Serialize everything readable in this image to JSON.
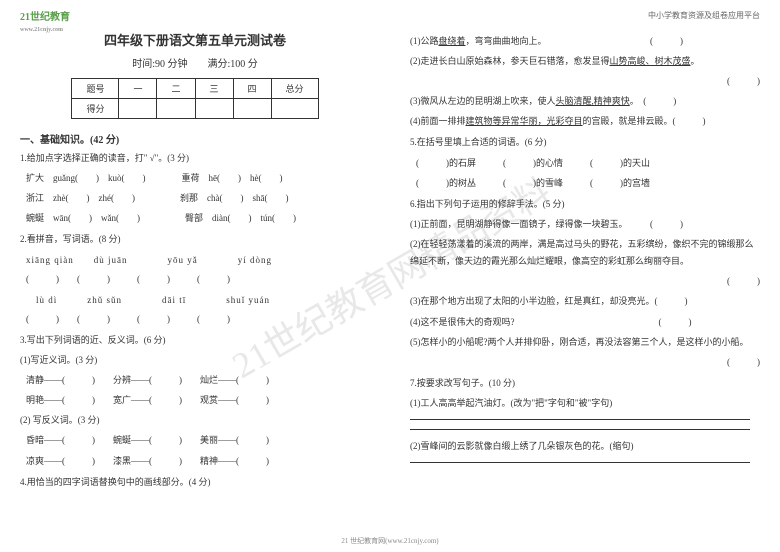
{
  "logo": {
    "main": "21世纪教育",
    "sub": "www.21cnjy.com"
  },
  "header_right": "中小学教育资源及组卷应用平台",
  "watermark": "21世纪教育网精品资料",
  "title": "四年级下册语文第五单元测试卷",
  "time_score": "时间:90 分钟　　满分:100 分",
  "score_table": {
    "row1": [
      "题号",
      "一",
      "二",
      "三",
      "四",
      "总分"
    ],
    "row2": [
      "得分",
      "",
      "",
      "",
      "",
      ""
    ]
  },
  "section1_title": "一、基础知识。(42 分)",
  "q1": {
    "title": "1.给加点字选择正确的读音，打\" √\"。(3 分)",
    "line1": "扩大　guǎng(　　)　kuò(　　)　　　　重荷　hē(　　)　hè(　　)",
    "line2": "浙江　zhè(　　)　zhé(　　)　　　　　刹那　chà(　　)　shā(　　)",
    "line3": "蜿蜒　wān(　　)　wǎn(　　)　　　　　臀部　diàn(　　)　tún(　　)"
  },
  "q2": {
    "title": "2.看拼音，写词语。(8 分)",
    "line1": "xiāng qiàn　　dù  juān　　　　yōu  yǎ　　　　yí  dòng",
    "line2": "(　　　)　　(　　　)　　　(　　　)　　　(　　　)",
    "line3": "　lù  dì　　　zhǔ  sǔn　　　　dāi  tī　　　　shuǐ  yuán",
    "line4": "(　　　)　　(　　　)　　　(　　　)　　　(　　　)"
  },
  "q3": {
    "title": "3.写出下列词语的近、反义词。(6 分)",
    "sub1": "(1)写近义词。(3 分)",
    "line1": "清静——(　　　)　　分辨——(　　　)　　灿烂——(　　　)",
    "line2": "明艳——(　　　)　　宽广——(　　　)　　观赏——(　　　)",
    "sub2": "(2) 写反义词。(3 分)",
    "line3": "昏暗——(　　　)　　蜿蜒——(　　　)　　美丽——(　　　)",
    "line4": "凉爽——(　　　)　　漆黑——(　　　)　　精神——(　　　)"
  },
  "q4": {
    "title": "4.用恰当的四字词语替换句中的画线部分。(4 分)",
    "r_line1": "(1)公路",
    "r_line1b": "，弯弯曲曲地向上。　　　　　　　　　　　　(　　　)",
    "r_underline1": "盘绕着",
    "r_line2": "(2)走进长白山原始森林，参天巨石错落，愈发显得",
    "r_underline2": "山势高峻、树木茂盛",
    "r_line2b": "。",
    "r_paren2": "(　　　)",
    "r_line3": "(3)微风从左边的昆明湖上吹来，使人",
    "r_underline3": "头脑清醒,精神爽快",
    "r_line3b": "。　(　　　)",
    "r_line4": "(4)前面一排排",
    "r_underline4": "建筑物等异常华丽，光彩夺目",
    "r_line4b": "的宫殿，就是排云殿。(　　　)"
  },
  "q5": {
    "title": "5.在括号里填上合适的词语。(6 分)",
    "line1": "(　　　)的石屏　　　(　　　)的心情　　　(　　　)的天山",
    "line2": "(　　　)的树丛　　　(　　　)的雪峰　　　(　　　)的宫墙"
  },
  "q6": {
    "title": "6.指出下列句子运用的修辞手法。(5 分)",
    "line1": "(1)正前面，昆明湖静得像一面镜子，绿得像一块碧玉。　　　(　　　)",
    "line2": "(2)在轻轻荡漾着的溪流的两岸，满是高过马头的野花，五彩缤纷，像织不完的锦缎那么绵延不断，像天边的霞光那么灿烂耀眼，像高空的彩虹那么绚丽夺目。",
    "paren2": "(　　　)",
    "line3": "(3)在那个地方出现了太阳的小半边脸，红是真红，却没亮光。(　　　)",
    "line4": "(4)这不是很伟大的奇观吗?　　　　　　　　　　　　　　　　(　　　)",
    "line5": "(5)怎样小的小船呢?两个人并排仰卧，刚合适，再没法容第三个人，是这样小的小船。",
    "paren5": "(　　　)"
  },
  "q7": {
    "title": "7.按要求改写句子。(10 分)",
    "line1": "(1)工人高高举起汽油灯。(改为\"把\"字句和\"被\"字句)",
    "line2": "(2)雪峰间的云影就像白缎上绣了几朵银灰色的花。(缩句)"
  },
  "footer": "21 世纪教育网(www.21cnjy.com)"
}
